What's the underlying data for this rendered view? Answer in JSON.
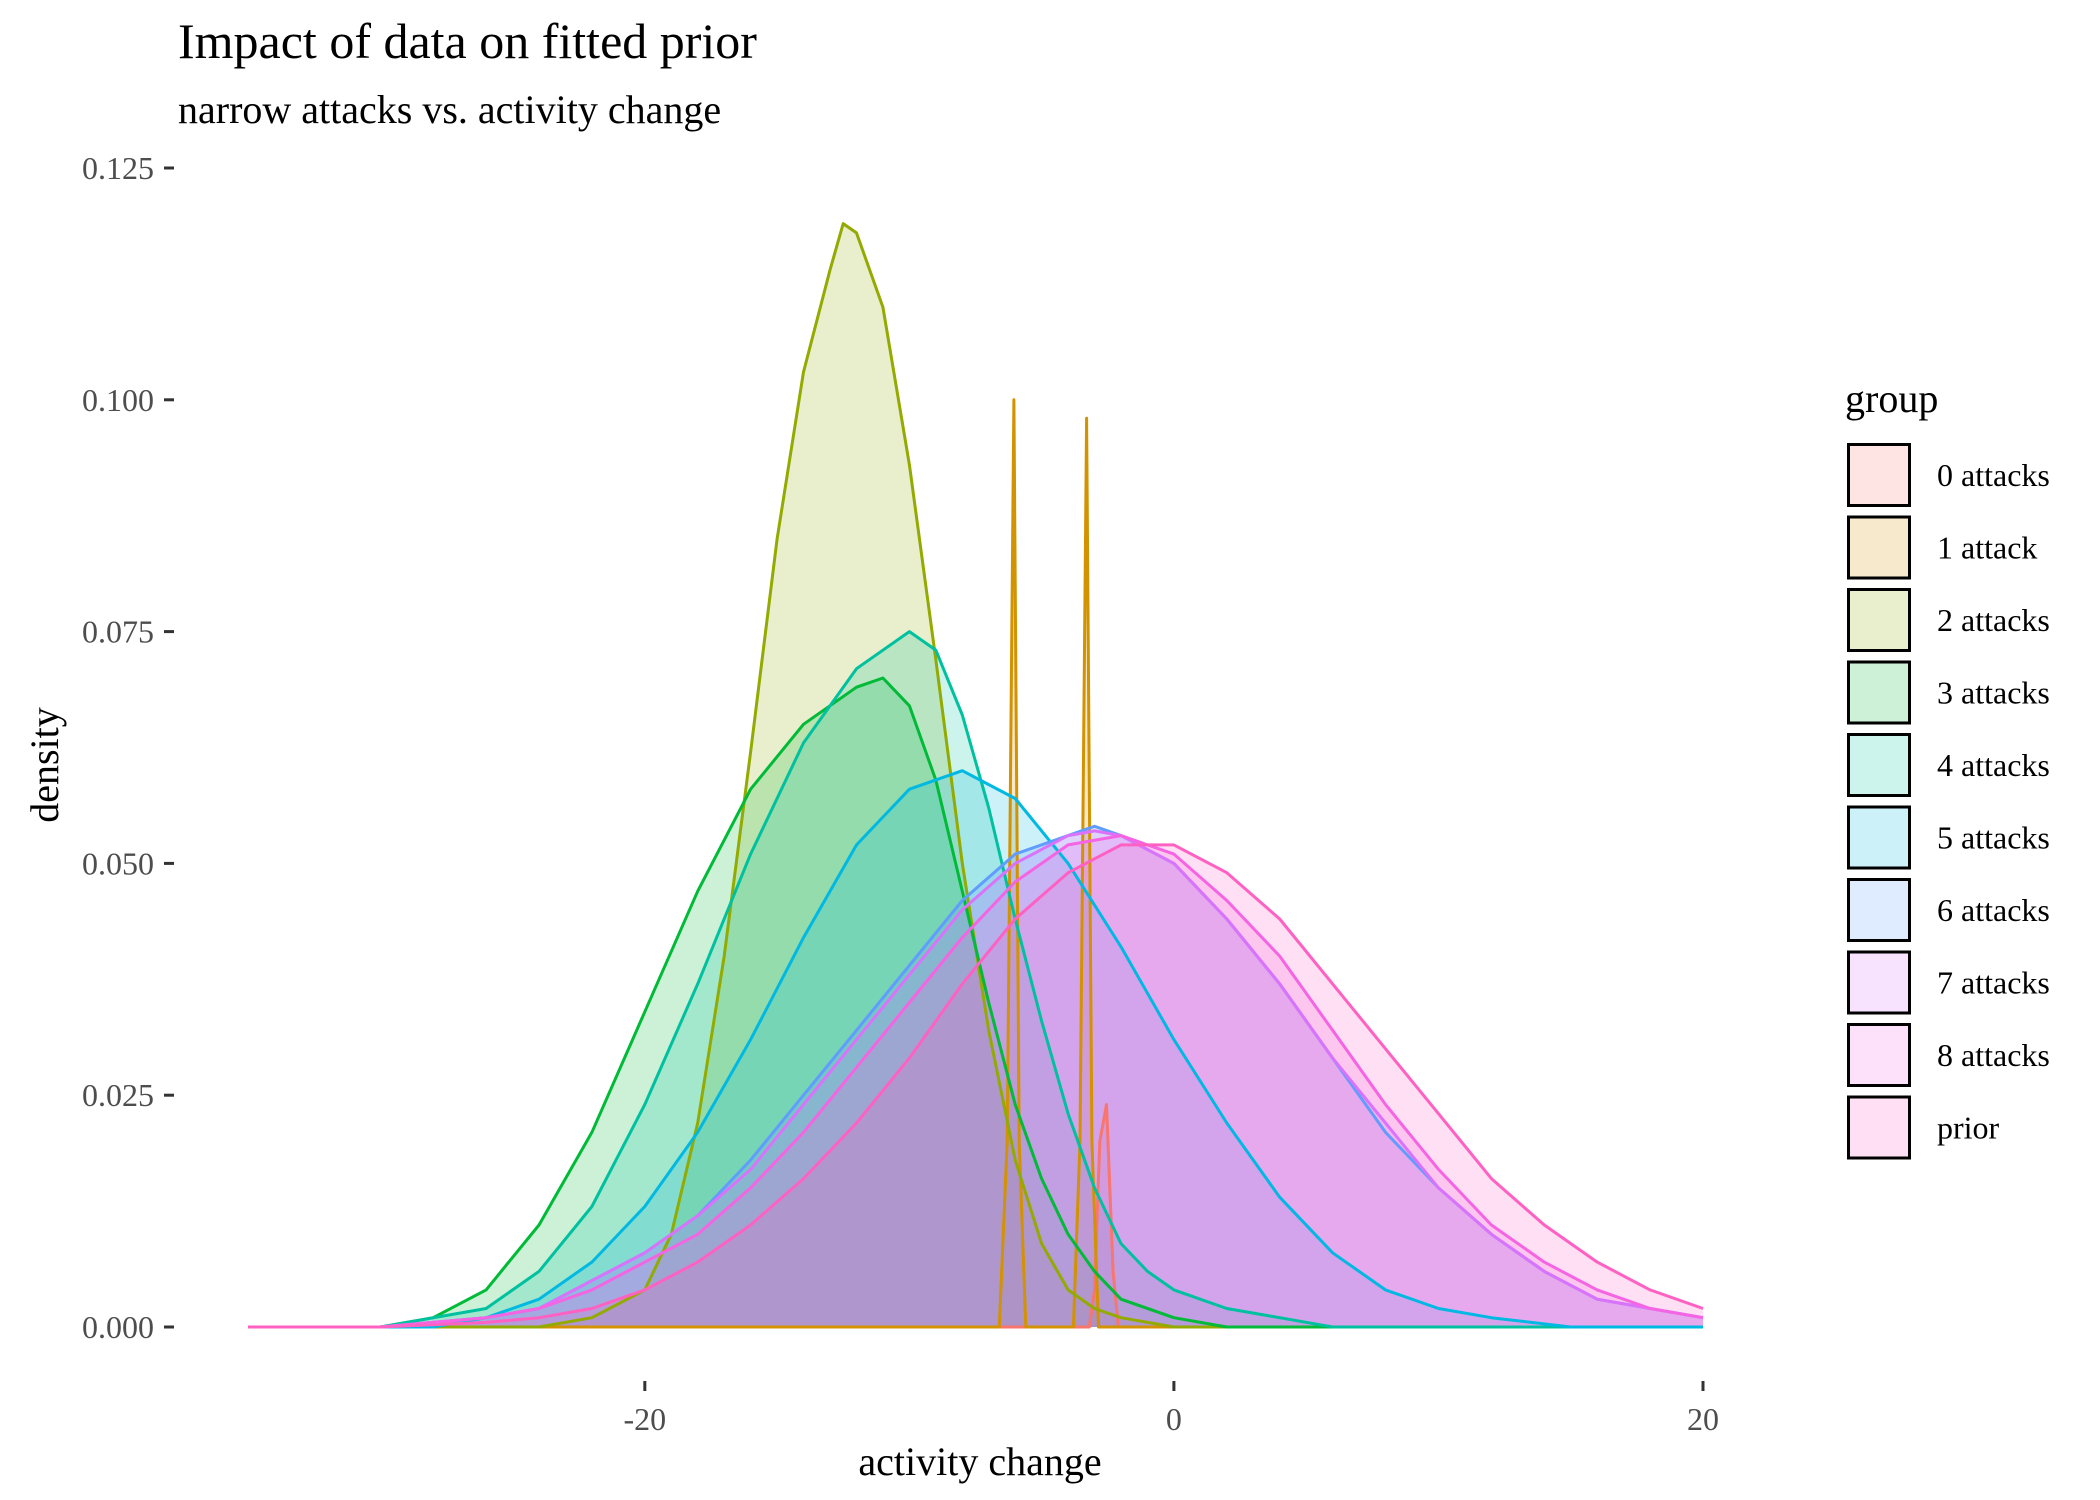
{
  "chart_data": {
    "type": "area",
    "title": "Impact of data on fitted prior",
    "subtitle": "narrow attacks vs. activity change",
    "xlabel": "activity change",
    "ylabel": "density",
    "xlim": [
      -35,
      20
    ],
    "ylim": [
      0,
      0.125
    ],
    "x_ticks": [
      -20,
      0,
      20
    ],
    "x_tick_labels": [
      "-20",
      "0",
      "20"
    ],
    "y_ticks": [
      0,
      0.025,
      0.05,
      0.075,
      0.1,
      0.125
    ],
    "y_tick_labels": [
      "0.000",
      "0.025",
      "0.050",
      "0.075",
      "0.100",
      "0.125"
    ],
    "grid": false,
    "legend_title": "group",
    "legend_position": "right",
    "series": [
      {
        "name": "0 attacks",
        "color": "#F8766D",
        "points": [
          [
            -35,
            0
          ],
          [
            -3.2,
            0
          ],
          [
            -3,
            0.004
          ],
          [
            -2.8,
            0.02
          ],
          [
            -2.55,
            0.024
          ],
          [
            -2.3,
            0.006
          ],
          [
            -2.1,
            0
          ],
          [
            20,
            0
          ]
        ]
      },
      {
        "name": "1 attack",
        "color": "#D39200",
        "points": [
          [
            -35,
            0
          ],
          [
            -6.6,
            0
          ],
          [
            -6.3,
            0.02
          ],
          [
            -6.05,
            0.1
          ],
          [
            -5.85,
            0.02
          ],
          [
            -5.6,
            0
          ],
          [
            -3.8,
            0
          ],
          [
            -3.55,
            0.02
          ],
          [
            -3.3,
            0.098
          ],
          [
            -3.1,
            0.02
          ],
          [
            -2.85,
            0
          ],
          [
            20,
            0
          ]
        ]
      },
      {
        "name": "2 attacks",
        "color": "#93AA00",
        "points": [
          [
            -35,
            0
          ],
          [
            -24,
            0
          ],
          [
            -22,
            0.001
          ],
          [
            -20,
            0.004
          ],
          [
            -19,
            0.01
          ],
          [
            -18,
            0.022
          ],
          [
            -17,
            0.04
          ],
          [
            -16,
            0.062
          ],
          [
            -15,
            0.085
          ],
          [
            -14,
            0.103
          ],
          [
            -13,
            0.114
          ],
          [
            -12.5,
            0.119
          ],
          [
            -12,
            0.118
          ],
          [
            -11,
            0.11
          ],
          [
            -10,
            0.093
          ],
          [
            -9,
            0.072
          ],
          [
            -8,
            0.05
          ],
          [
            -7,
            0.032
          ],
          [
            -6,
            0.018
          ],
          [
            -5,
            0.009
          ],
          [
            -4,
            0.004
          ],
          [
            -3,
            0.002
          ],
          [
            -2,
            0.001
          ],
          [
            0,
            0
          ],
          [
            20,
            0
          ]
        ]
      },
      {
        "name": "3 attacks",
        "color": "#00BA38",
        "points": [
          [
            -35,
            0
          ],
          [
            -30,
            0
          ],
          [
            -28,
            0.001
          ],
          [
            -26,
            0.004
          ],
          [
            -24,
            0.011
          ],
          [
            -22,
            0.021
          ],
          [
            -20,
            0.034
          ],
          [
            -18,
            0.047
          ],
          [
            -16,
            0.058
          ],
          [
            -14,
            0.065
          ],
          [
            -12,
            0.069
          ],
          [
            -11,
            0.07
          ],
          [
            -10,
            0.067
          ],
          [
            -9,
            0.059
          ],
          [
            -8,
            0.047
          ],
          [
            -7,
            0.035
          ],
          [
            -6,
            0.024
          ],
          [
            -5,
            0.016
          ],
          [
            -4,
            0.01
          ],
          [
            -3,
            0.006
          ],
          [
            -2,
            0.003
          ],
          [
            0,
            0.001
          ],
          [
            2,
            0
          ],
          [
            20,
            0
          ]
        ]
      },
      {
        "name": "4 attacks",
        "color": "#00C19F",
        "points": [
          [
            -35,
            0
          ],
          [
            -30,
            0
          ],
          [
            -26,
            0.002
          ],
          [
            -24,
            0.006
          ],
          [
            -22,
            0.013
          ],
          [
            -20,
            0.024
          ],
          [
            -18,
            0.037
          ],
          [
            -16,
            0.051
          ],
          [
            -14,
            0.063
          ],
          [
            -12,
            0.071
          ],
          [
            -10,
            0.075
          ],
          [
            -9,
            0.073
          ],
          [
            -8,
            0.066
          ],
          [
            -7,
            0.056
          ],
          [
            -6,
            0.044
          ],
          [
            -5,
            0.033
          ],
          [
            -4,
            0.023
          ],
          [
            -3,
            0.015
          ],
          [
            -2,
            0.009
          ],
          [
            -1,
            0.006
          ],
          [
            0,
            0.004
          ],
          [
            2,
            0.002
          ],
          [
            4,
            0.001
          ],
          [
            6,
            0
          ],
          [
            20,
            0
          ]
        ]
      },
      {
        "name": "5 attacks",
        "color": "#00B9E3",
        "points": [
          [
            -35,
            0
          ],
          [
            -28,
            0
          ],
          [
            -26,
            0.001
          ],
          [
            -24,
            0.003
          ],
          [
            -22,
            0.007
          ],
          [
            -20,
            0.013
          ],
          [
            -18,
            0.021
          ],
          [
            -16,
            0.031
          ],
          [
            -14,
            0.042
          ],
          [
            -12,
            0.052
          ],
          [
            -10,
            0.058
          ],
          [
            -8,
            0.06
          ],
          [
            -6,
            0.057
          ],
          [
            -4,
            0.05
          ],
          [
            -2,
            0.041
          ],
          [
            0,
            0.031
          ],
          [
            2,
            0.022
          ],
          [
            4,
            0.014
          ],
          [
            6,
            0.008
          ],
          [
            8,
            0.004
          ],
          [
            10,
            0.002
          ],
          [
            12,
            0.001
          ],
          [
            15,
            0
          ],
          [
            20,
            0
          ]
        ]
      },
      {
        "name": "6 attacks",
        "color": "#619CFF",
        "points": [
          [
            -35,
            0
          ],
          [
            -30,
            0
          ],
          [
            -26,
            0.001
          ],
          [
            -24,
            0.002
          ],
          [
            -22,
            0.005
          ],
          [
            -20,
            0.008
          ],
          [
            -18,
            0.012
          ],
          [
            -16,
            0.018
          ],
          [
            -14,
            0.025
          ],
          [
            -12,
            0.032
          ],
          [
            -10,
            0.039
          ],
          [
            -8,
            0.046
          ],
          [
            -6,
            0.051
          ],
          [
            -4,
            0.053
          ],
          [
            -3,
            0.054
          ],
          [
            -2,
            0.053
          ],
          [
            0,
            0.05
          ],
          [
            2,
            0.044
          ],
          [
            4,
            0.037
          ],
          [
            6,
            0.029
          ],
          [
            8,
            0.021
          ],
          [
            10,
            0.015
          ],
          [
            12,
            0.01
          ],
          [
            14,
            0.006
          ],
          [
            16,
            0.003
          ],
          [
            18,
            0.002
          ],
          [
            20,
            0.001
          ]
        ]
      },
      {
        "name": "7 attacks",
        "color": "#DB72FB",
        "points": [
          [
            -35,
            0
          ],
          [
            -30,
            0
          ],
          [
            -26,
            0.001
          ],
          [
            -24,
            0.002
          ],
          [
            -22,
            0.005
          ],
          [
            -20,
            0.008
          ],
          [
            -18,
            0.012
          ],
          [
            -16,
            0.017
          ],
          [
            -14,
            0.024
          ],
          [
            -12,
            0.031
          ],
          [
            -10,
            0.038
          ],
          [
            -8,
            0.045
          ],
          [
            -6,
            0.05
          ],
          [
            -4,
            0.053
          ],
          [
            -3,
            0.0535
          ],
          [
            -2,
            0.053
          ],
          [
            0,
            0.05
          ],
          [
            2,
            0.044
          ],
          [
            4,
            0.037
          ],
          [
            6,
            0.029
          ],
          [
            8,
            0.022
          ],
          [
            10,
            0.015
          ],
          [
            12,
            0.01
          ],
          [
            14,
            0.006
          ],
          [
            16,
            0.003
          ],
          [
            18,
            0.002
          ],
          [
            20,
            0.001
          ]
        ]
      },
      {
        "name": "8 attacks",
        "color": "#F564E3",
        "points": [
          [
            -35,
            0
          ],
          [
            -30,
            0
          ],
          [
            -26,
            0.001
          ],
          [
            -24,
            0.002
          ],
          [
            -22,
            0.004
          ],
          [
            -20,
            0.007
          ],
          [
            -18,
            0.01
          ],
          [
            -16,
            0.015
          ],
          [
            -14,
            0.021
          ],
          [
            -12,
            0.028
          ],
          [
            -10,
            0.035
          ],
          [
            -8,
            0.042
          ],
          [
            -6,
            0.048
          ],
          [
            -4,
            0.052
          ],
          [
            -2,
            0.053
          ],
          [
            0,
            0.051
          ],
          [
            2,
            0.046
          ],
          [
            4,
            0.04
          ],
          [
            6,
            0.032
          ],
          [
            8,
            0.024
          ],
          [
            10,
            0.017
          ],
          [
            12,
            0.011
          ],
          [
            14,
            0.007
          ],
          [
            16,
            0.004
          ],
          [
            18,
            0.002
          ],
          [
            20,
            0.001
          ]
        ]
      },
      {
        "name": "prior",
        "color": "#FF61C3",
        "points": [
          [
            -35,
            0
          ],
          [
            -30,
            0
          ],
          [
            -26,
            0.0005
          ],
          [
            -24,
            0.001
          ],
          [
            -22,
            0.002
          ],
          [
            -20,
            0.004
          ],
          [
            -18,
            0.007
          ],
          [
            -16,
            0.011
          ],
          [
            -14,
            0.016
          ],
          [
            -12,
            0.022
          ],
          [
            -10,
            0.029
          ],
          [
            -8,
            0.037
          ],
          [
            -6,
            0.044
          ],
          [
            -4,
            0.049
          ],
          [
            -2,
            0.052
          ],
          [
            0,
            0.052
          ],
          [
            2,
            0.049
          ],
          [
            4,
            0.044
          ],
          [
            6,
            0.037
          ],
          [
            8,
            0.03
          ],
          [
            10,
            0.023
          ],
          [
            12,
            0.016
          ],
          [
            14,
            0.011
          ],
          [
            16,
            0.007
          ],
          [
            18,
            0.004
          ],
          [
            20,
            0.002
          ]
        ]
      }
    ]
  }
}
